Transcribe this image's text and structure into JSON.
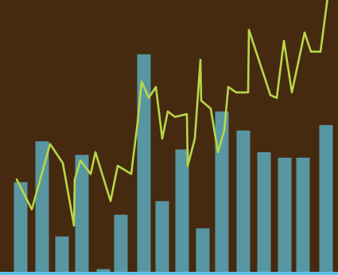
{
  "colors": {
    "background": "#452a10",
    "bar": "#5896a2",
    "line": "#b9d648",
    "baseline": "#5bc0e6"
  },
  "chart_data": {
    "type": "bar",
    "grid": false,
    "legend": "none",
    "ylim": [
      0,
      100
    ],
    "bar_series": {
      "values": [
        {
          "x": 26,
          "y": 33
        },
        {
          "x": 53,
          "y": 48
        },
        {
          "x": 78,
          "y": 13
        },
        {
          "x": 103,
          "y": 43
        },
        {
          "x": 130,
          "y": 1
        },
        {
          "x": 152,
          "y": 21
        },
        {
          "x": 181,
          "y": 80
        },
        {
          "x": 204,
          "y": 26
        },
        {
          "x": 229,
          "y": 45
        },
        {
          "x": 255,
          "y": 16
        },
        {
          "x": 279,
          "y": 59
        },
        {
          "x": 306,
          "y": 52
        },
        {
          "x": 332,
          "y": 44
        },
        {
          "x": 358,
          "y": 42
        },
        {
          "x": 381,
          "y": 42
        },
        {
          "x": 410,
          "y": 54
        }
      ]
    },
    "line_series": {
      "points": [
        [
          21,
          34
        ],
        [
          40,
          23
        ],
        [
          63,
          47
        ],
        [
          79,
          40
        ],
        [
          93,
          17
        ],
        [
          94,
          34
        ],
        [
          101,
          41
        ],
        [
          114,
          36
        ],
        [
          120,
          44
        ],
        [
          139,
          26
        ],
        [
          148,
          39
        ],
        [
          165,
          36
        ],
        [
          173,
          55
        ],
        [
          178,
          70
        ],
        [
          187,
          64
        ],
        [
          196,
          68
        ],
        [
          204,
          49
        ],
        [
          211,
          59
        ],
        [
          220,
          57
        ],
        [
          235,
          58
        ],
        [
          236,
          39
        ],
        [
          245,
          49
        ],
        [
          252,
          78
        ],
        [
          253,
          63
        ],
        [
          265,
          60
        ],
        [
          274,
          44
        ],
        [
          282,
          52
        ],
        [
          287,
          68
        ],
        [
          297,
          66
        ],
        [
          312,
          66
        ],
        [
          313,
          89
        ],
        [
          340,
          65
        ],
        [
          348,
          64
        ],
        [
          357,
          85
        ],
        [
          367,
          66
        ],
        [
          383,
          88
        ],
        [
          391,
          81
        ],
        [
          403,
          81
        ],
        [
          412,
          101
        ]
      ]
    }
  }
}
